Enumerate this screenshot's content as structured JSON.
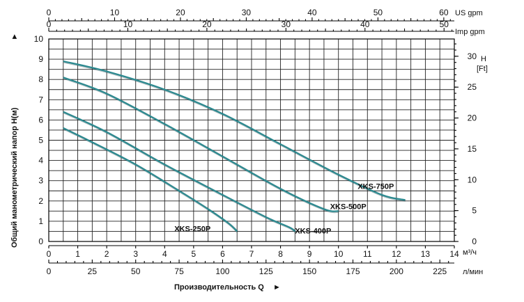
{
  "chart_data": {
    "type": "line",
    "title": "",
    "x": {
      "label": "Производительность Q",
      "unit": "м³/ч",
      "lim": [
        0,
        14
      ],
      "ticks": [
        0,
        1,
        2,
        3,
        4,
        5,
        6,
        7,
        8,
        9,
        10,
        11,
        12,
        13,
        14
      ]
    },
    "x_lmin": {
      "unit": "л/мин",
      "lim": [
        0,
        233.33
      ],
      "ticks": [
        0,
        25,
        50,
        75,
        100,
        125,
        150,
        175,
        200,
        225
      ]
    },
    "x_us_gpm": {
      "unit": "US gpm",
      "lim": [
        0,
        61.6
      ],
      "ticks": [
        0,
        10,
        20,
        30,
        40,
        50,
        60
      ]
    },
    "x_imp_gpm": {
      "unit": "Imp gpm",
      "lim": [
        0,
        51.3
      ],
      "ticks": [
        0,
        10,
        20,
        30,
        40,
        50
      ]
    },
    "y": {
      "label": "Общий манометрический напор H(м)",
      "lim": [
        0,
        10
      ],
      "ticks": [
        0,
        1,
        2,
        3,
        4,
        5,
        6,
        7,
        8,
        9,
        10
      ],
      "grid": true
    },
    "y_ft": {
      "unit": "H [Ft]",
      "unit_line1": "H",
      "unit_line2": "[Ft]",
      "lim": [
        0,
        32.8
      ],
      "ticks": [
        0,
        5,
        10,
        15,
        20,
        25,
        30
      ]
    },
    "series": [
      {
        "name": "XKS-750P",
        "x": [
          0.5,
          2,
          4,
          6,
          8,
          10,
          11.5,
          12.3
        ],
        "y": [
          8.9,
          8.4,
          7.5,
          6.3,
          4.8,
          3.3,
          2.3,
          2.05
        ]
      },
      {
        "name": "XKS-500P",
        "x": [
          0.5,
          2,
          4,
          6,
          8,
          9.5,
          10.0
        ],
        "y": [
          8.1,
          7.3,
          5.8,
          4.2,
          2.6,
          1.6,
          1.5
        ]
      },
      {
        "name": "XKS-400P",
        "x": [
          0.5,
          2,
          4,
          6,
          7.5,
          8.3,
          8.5
        ],
        "y": [
          6.4,
          5.4,
          3.8,
          2.3,
          1.2,
          0.7,
          0.5
        ]
      },
      {
        "name": "XKS-250P",
        "x": [
          0.5,
          1.5,
          3,
          4.5,
          5.5,
          6.2,
          6.5
        ],
        "y": [
          5.6,
          4.9,
          3.8,
          2.5,
          1.6,
          0.9,
          0.5
        ]
      }
    ],
    "legend": "inline labels",
    "colors": {
      "line": "#2b8a90",
      "grid": "#222222",
      "background": "#ffffff"
    },
    "labels_text": {
      "x_units_m3h": "м³/ч",
      "x_units_lmin": "л/мин",
      "top_us": "US gpm",
      "top_imp": "Imp gpm"
    }
  }
}
